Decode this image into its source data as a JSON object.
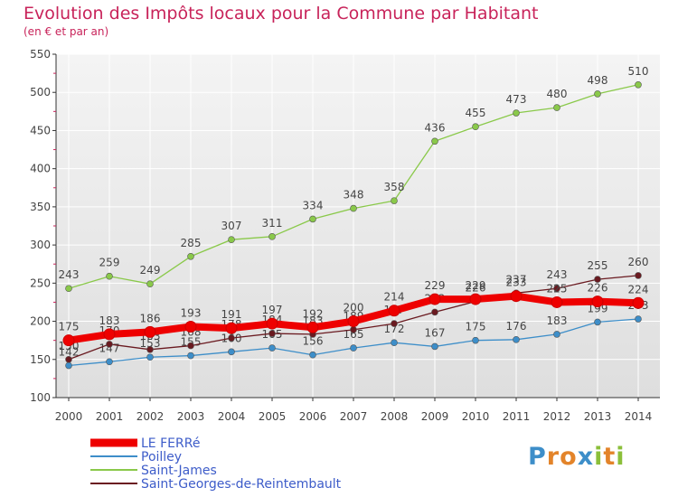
{
  "title": "Evolution des Impôts locaux pour la Commune par Habitant",
  "subtitle": "(en € et par an)",
  "logo": {
    "text": "Proxiti",
    "letters": [
      "P",
      "r",
      "o",
      "x",
      "i",
      "t",
      "i"
    ],
    "colors": [
      "#3d8ec9",
      "#e3842a",
      "#e3842a",
      "#3d8ec9",
      "#8bbf3a",
      "#e3842a",
      "#8bbf3a"
    ]
  },
  "chart_data": {
    "type": "line",
    "x": [
      2000,
      2001,
      2002,
      2003,
      2004,
      2005,
      2006,
      2007,
      2008,
      2009,
      2010,
      2011,
      2012,
      2013,
      2014
    ],
    "ylim": [
      100,
      550
    ],
    "yticks": [
      100,
      150,
      200,
      250,
      300,
      350,
      400,
      450,
      500,
      550
    ],
    "grid": true,
    "legend_position": "bottom-left",
    "series": [
      {
        "name": "LE FERRé",
        "color": "#ee0000",
        "values": [
          175,
          183,
          186,
          193,
          191,
          197,
          192,
          200,
          214,
          229,
          229,
          233,
          225,
          226,
          224
        ],
        "labels": [
          "175",
          "183",
          "186",
          "193",
          "191",
          "197",
          "192",
          "200",
          "214",
          "229",
          "229",
          "233",
          "225",
          "226",
          "224"
        ]
      },
      {
        "name": "Poilley",
        "color": "#3d8ec9",
        "values": [
          142,
          147,
          153,
          155,
          160,
          165,
          156,
          165,
          172,
          167,
          175,
          176,
          183,
          199,
          203
        ],
        "labels": [
          "142",
          "147",
          "153",
          "155",
          "160",
          "165",
          "156",
          "165",
          "172",
          "167",
          "175",
          "176",
          "183",
          "199",
          "203"
        ]
      },
      {
        "name": "Saint-James",
        "color": "#8ac94a",
        "values": [
          243,
          259,
          249,
          285,
          307,
          311,
          334,
          348,
          358,
          436,
          455,
          473,
          480,
          498,
          510
        ],
        "labels": [
          "243",
          "259",
          "249",
          "285",
          "307",
          "311",
          "334",
          "348",
          "358",
          "436",
          "455",
          "473",
          "480",
          "498",
          "510"
        ]
      },
      {
        "name": "Saint-Georges-de-Reintembault",
        "color": "#6a1a20",
        "values": [
          150,
          170,
          163,
          168,
          178,
          184,
          183,
          189,
          197,
          212,
          226,
          237,
          243,
          255,
          260
        ],
        "labels": [
          "150",
          "170",
          "163",
          "168",
          "178",
          "184",
          "183",
          "189",
          "197",
          "212",
          "226",
          "237",
          "243",
          "255",
          "260"
        ]
      }
    ]
  }
}
